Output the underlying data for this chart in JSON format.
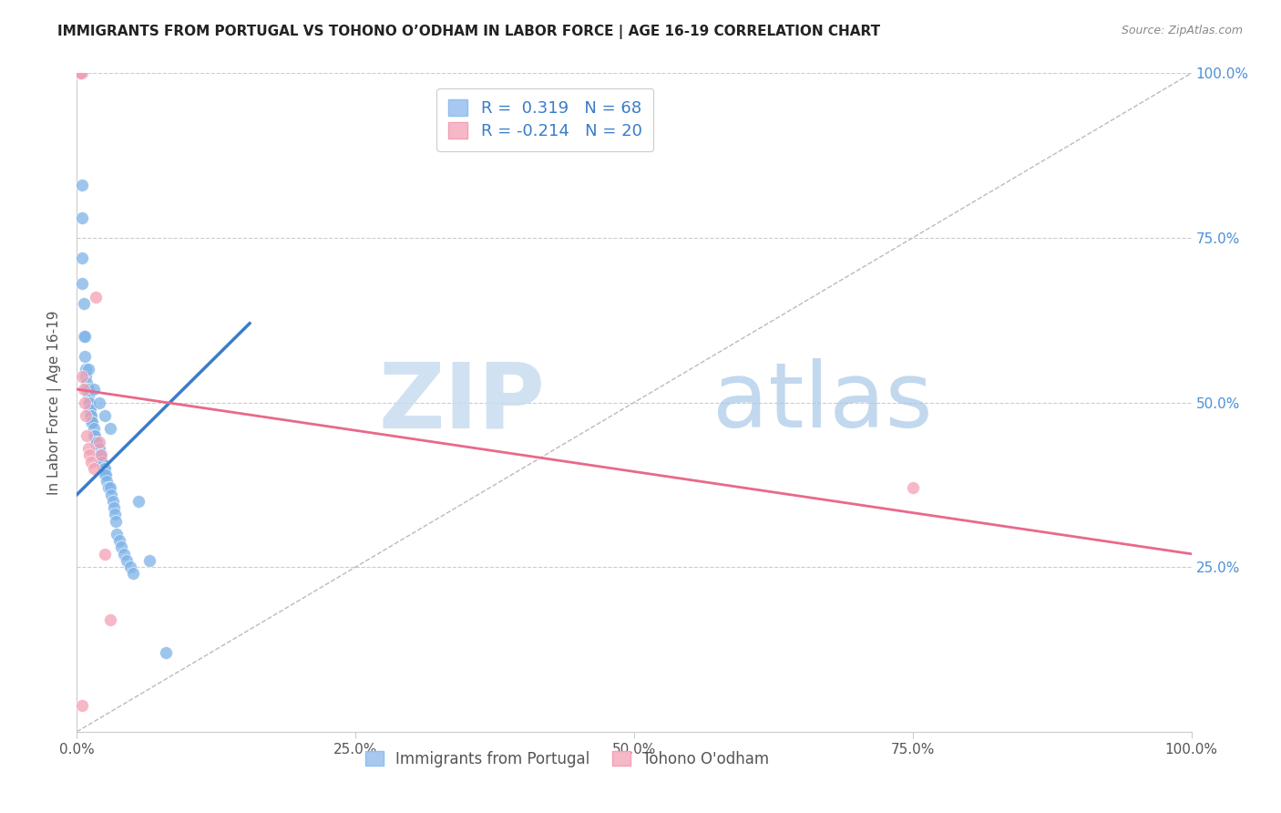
{
  "title": "IMMIGRANTS FROM PORTUGAL VS TOHONO O’ODHAM IN LABOR FORCE | AGE 16-19 CORRELATION CHART",
  "source": "Source: ZipAtlas.com",
  "ylabel": "In Labor Force | Age 16-19",
  "r_blue": 0.319,
  "n_blue": 68,
  "r_pink": -0.214,
  "n_pink": 20,
  "xlim": [
    0,
    1
  ],
  "ylim": [
    0,
    1
  ],
  "xtick_labels": [
    "0.0%",
    "25.0%",
    "50.0%",
    "75.0%",
    "100.0%"
  ],
  "xtick_vals": [
    0,
    0.25,
    0.5,
    0.75,
    1.0
  ],
  "ytick_labels": [
    "25.0%",
    "50.0%",
    "75.0%",
    "100.0%"
  ],
  "ytick_vals": [
    0.25,
    0.5,
    0.75,
    1.0
  ],
  "blue_color": "#7EB3E8",
  "pink_color": "#F4A0B5",
  "blue_line_color": "#3A7CC8",
  "pink_line_color": "#E8698A",
  "legend_blue_fill": "#A8C8F0",
  "legend_pink_fill": "#F4B8C8",
  "blue_x": [
    0.001,
    0.002,
    0.002,
    0.003,
    0.003,
    0.004,
    0.004,
    0.005,
    0.005,
    0.005,
    0.005,
    0.005,
    0.006,
    0.006,
    0.007,
    0.007,
    0.008,
    0.008,
    0.009,
    0.009,
    0.01,
    0.01,
    0.01,
    0.011,
    0.011,
    0.012,
    0.012,
    0.013,
    0.013,
    0.014,
    0.015,
    0.015,
    0.016,
    0.017,
    0.018,
    0.019,
    0.02,
    0.02,
    0.021,
    0.022,
    0.023,
    0.024,
    0.025,
    0.025,
    0.026,
    0.027,
    0.028,
    0.03,
    0.031,
    0.032,
    0.033,
    0.034,
    0.035,
    0.036,
    0.038,
    0.04,
    0.042,
    0.045,
    0.048,
    0.05,
    0.01,
    0.015,
    0.02,
    0.025,
    0.03,
    0.055,
    0.065,
    0.08
  ],
  "blue_y": [
    1.0,
    1.0,
    1.0,
    1.0,
    1.0,
    1.0,
    1.0,
    1.0,
    0.83,
    0.78,
    0.72,
    0.68,
    0.65,
    0.6,
    0.6,
    0.57,
    0.55,
    0.54,
    0.53,
    0.52,
    0.52,
    0.51,
    0.5,
    0.5,
    0.49,
    0.49,
    0.48,
    0.48,
    0.47,
    0.47,
    0.46,
    0.45,
    0.45,
    0.44,
    0.44,
    0.43,
    0.43,
    0.42,
    0.42,
    0.41,
    0.41,
    0.4,
    0.4,
    0.39,
    0.39,
    0.38,
    0.37,
    0.37,
    0.36,
    0.35,
    0.34,
    0.33,
    0.32,
    0.3,
    0.29,
    0.28,
    0.27,
    0.26,
    0.25,
    0.24,
    0.55,
    0.52,
    0.5,
    0.48,
    0.46,
    0.35,
    0.26,
    0.12
  ],
  "pink_x": [
    0.001,
    0.002,
    0.003,
    0.004,
    0.005,
    0.006,
    0.007,
    0.008,
    0.009,
    0.01,
    0.011,
    0.013,
    0.015,
    0.017,
    0.02,
    0.022,
    0.025,
    0.03,
    0.75,
    0.005
  ],
  "pink_y": [
    1.0,
    1.0,
    1.0,
    1.0,
    0.54,
    0.52,
    0.5,
    0.48,
    0.45,
    0.43,
    0.42,
    0.41,
    0.4,
    0.66,
    0.44,
    0.42,
    0.27,
    0.17,
    0.37,
    0.04
  ],
  "blue_trend_x0": 0.0,
  "blue_trend_x1": 0.155,
  "blue_trend_y0": 0.36,
  "blue_trend_y1": 0.62,
  "pink_trend_x0": 0.0,
  "pink_trend_x1": 1.0,
  "pink_trend_y0": 0.52,
  "pink_trend_y1": 0.27,
  "background_color": "#FFFFFF",
  "grid_color": "#CCCCCC",
  "watermark_zip": "ZIP",
  "watermark_atlas": "atlas"
}
